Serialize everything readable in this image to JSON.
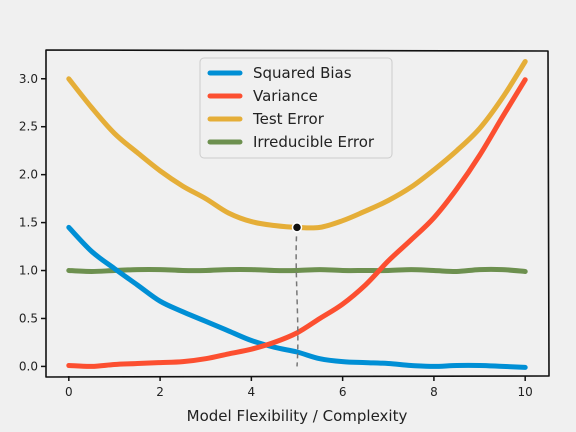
{
  "chart_data": {
    "type": "line",
    "title": "",
    "xlabel": "Model Flexibility / Complexity",
    "ylabel": "",
    "xlim": [
      -0.5,
      10.5
    ],
    "ylim": [
      -0.1,
      3.3
    ],
    "xticks": [
      0,
      2,
      4,
      6,
      8,
      10
    ],
    "yticks": [
      0.0,
      0.5,
      1.0,
      1.5,
      2.0,
      2.5,
      3.0
    ],
    "xtick_labels": [
      "0",
      "2",
      "4",
      "6",
      "8",
      "10"
    ],
    "ytick_labels": [
      "0.0",
      "0.5",
      "1.0",
      "1.5",
      "2.0",
      "2.5",
      "3.0"
    ],
    "grid": false,
    "legend_position": "top-center",
    "x": [
      0,
      0.5,
      1,
      1.5,
      2,
      2.5,
      3,
      3.5,
      4,
      4.5,
      5,
      5.5,
      6,
      6.5,
      7,
      7.5,
      8,
      8.5,
      9,
      9.5,
      10
    ],
    "series": [
      {
        "name": "Squared Bias",
        "color": "#008fd5",
        "values": [
          1.45,
          1.2,
          1.02,
          0.85,
          0.68,
          0.57,
          0.47,
          0.37,
          0.27,
          0.2,
          0.15,
          0.08,
          0.05,
          0.04,
          0.03,
          0.01,
          0.0,
          0.01,
          0.01,
          0.0,
          -0.01
        ]
      },
      {
        "name": "Variance",
        "color": "#fc4f30",
        "values": [
          0.01,
          0.0,
          0.02,
          0.03,
          0.04,
          0.05,
          0.08,
          0.13,
          0.18,
          0.25,
          0.35,
          0.5,
          0.65,
          0.85,
          1.1,
          1.32,
          1.55,
          1.85,
          2.2,
          2.6,
          2.99
        ]
      },
      {
        "name": "Test Error",
        "color": "#e5ae38",
        "values": [
          3.0,
          2.7,
          2.43,
          2.23,
          2.04,
          1.88,
          1.75,
          1.6,
          1.51,
          1.47,
          1.45,
          1.45,
          1.52,
          1.62,
          1.73,
          1.87,
          2.05,
          2.25,
          2.48,
          2.8,
          3.18
        ]
      },
      {
        "name": "Irreducible Error",
        "color": "#6d904f",
        "values": [
          1.0,
          0.99,
          1.0,
          1.01,
          1.01,
          1.0,
          1.0,
          1.01,
          1.01,
          1.0,
          1.0,
          1.01,
          1.0,
          1.0,
          1.0,
          1.01,
          1.0,
          0.99,
          1.01,
          1.01,
          0.99
        ]
      }
    ],
    "annotation": {
      "type": "dashed-line-with-marker",
      "x": 5,
      "y_from": 0.0,
      "y_to": 1.45
    }
  }
}
